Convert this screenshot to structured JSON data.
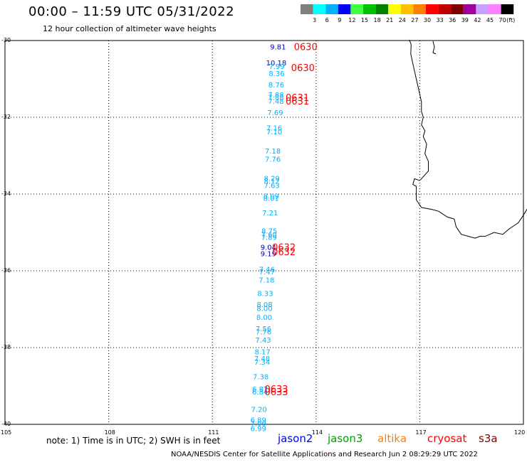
{
  "header": {
    "title": "00:00 – 11:59 UTC 05/31/2022",
    "subtitle": "12 hour collection of altimeter wave heights"
  },
  "legend": {
    "bins": [
      "3",
      "6",
      "9",
      "12",
      "15",
      "18",
      "21",
      "24",
      "27",
      "30",
      "33",
      "36",
      "39",
      "42",
      "45",
      "70"
    ],
    "unit": "(ft)",
    "colors": [
      "#7f7f7f",
      "#00ffff",
      "#00b0ff",
      "#0000ff",
      "#40ff40",
      "#00c000",
      "#008000",
      "#ffff00",
      "#ffc000",
      "#ff8000",
      "#ff0000",
      "#c00000",
      "#800000",
      "#a000a0",
      "#c8a0ff",
      "#ff80ff",
      "#000000"
    ]
  },
  "axes": {
    "lat_labels": [
      "-30",
      "-32",
      "-34",
      "-36",
      "-38",
      "-40"
    ],
    "lon_labels": [
      "105",
      "108",
      "111",
      "114",
      "117",
      "120"
    ]
  },
  "observations": [
    {
      "lat": -30.16,
      "lon": 112.9,
      "value": "9.81",
      "color": "#0000c0"
    },
    {
      "lat": -30.57,
      "lon": 112.85,
      "value": "10.18",
      "color": "#0000c0"
    },
    {
      "lat": -30.67,
      "lon": 112.86,
      "value": "7.99",
      "color": "#00b0ff"
    },
    {
      "lat": -30.85,
      "lon": 112.86,
      "value": "8.36",
      "color": "#00b0ff"
    },
    {
      "lat": -31.15,
      "lon": 112.85,
      "value": "8.76",
      "color": "#00b0ff"
    },
    {
      "lat": -31.41,
      "lon": 112.84,
      "value": "7.88",
      "color": "#00b0ff"
    },
    {
      "lat": -31.47,
      "lon": 112.84,
      "value": "7.88",
      "color": "#00b0ff"
    },
    {
      "lat": -31.57,
      "lon": 112.84,
      "value": "7.48",
      "color": "#00b0ff"
    },
    {
      "lat": -31.87,
      "lon": 112.82,
      "value": "7.69",
      "color": "#00b0ff"
    },
    {
      "lat": -32.27,
      "lon": 112.79,
      "value": "7.16",
      "color": "#00b0ff"
    },
    {
      "lat": -32.37,
      "lon": 112.79,
      "value": "7.10",
      "color": "#00b0ff"
    },
    {
      "lat": -32.87,
      "lon": 112.75,
      "value": "7.18",
      "color": "#00b0ff"
    },
    {
      "lat": -33.08,
      "lon": 112.75,
      "value": "7.76",
      "color": "#00b0ff"
    },
    {
      "lat": -33.58,
      "lon": 112.72,
      "value": "8.29",
      "color": "#00b0ff"
    },
    {
      "lat": -33.66,
      "lon": 112.72,
      "value": "8.12",
      "color": "#00b0ff"
    },
    {
      "lat": -33.77,
      "lon": 112.72,
      "value": "7.63",
      "color": "#00b0ff"
    },
    {
      "lat": -34.05,
      "lon": 112.7,
      "value": "8.09",
      "color": "#00b0ff"
    },
    {
      "lat": -34.1,
      "lon": 112.7,
      "value": "8.01",
      "color": "#00b0ff"
    },
    {
      "lat": -34.48,
      "lon": 112.67,
      "value": "7.21",
      "color": "#00b0ff"
    },
    {
      "lat": -34.95,
      "lon": 112.65,
      "value": "8.75",
      "color": "#00b0ff"
    },
    {
      "lat": -35.05,
      "lon": 112.64,
      "value": "7.60",
      "color": "#00b0ff"
    },
    {
      "lat": -35.12,
      "lon": 112.64,
      "value": "7.89",
      "color": "#00b0ff"
    },
    {
      "lat": -35.38,
      "lon": 112.62,
      "value": "9.04",
      "color": "#0000c0"
    },
    {
      "lat": -35.55,
      "lon": 112.62,
      "value": "9.19",
      "color": "#0000c0"
    },
    {
      "lat": -35.95,
      "lon": 112.58,
      "value": "7.46",
      "color": "#00b0ff"
    },
    {
      "lat": -36.02,
      "lon": 112.58,
      "value": "7.47",
      "color": "#00b0ff"
    },
    {
      "lat": -36.23,
      "lon": 112.57,
      "value": "7.18",
      "color": "#00b0ff"
    },
    {
      "lat": -36.58,
      "lon": 112.53,
      "value": "8.33",
      "color": "#00b0ff"
    },
    {
      "lat": -36.87,
      "lon": 112.51,
      "value": "8.08",
      "color": "#00b0ff"
    },
    {
      "lat": -36.97,
      "lon": 112.51,
      "value": "8.00",
      "color": "#00b0ff"
    },
    {
      "lat": -37.2,
      "lon": 112.5,
      "value": "8.00",
      "color": "#00b0ff"
    },
    {
      "lat": -37.5,
      "lon": 112.48,
      "value": "7.56",
      "color": "#00b0ff"
    },
    {
      "lat": -37.58,
      "lon": 112.48,
      "value": "7.76",
      "color": "#00b0ff"
    },
    {
      "lat": -37.8,
      "lon": 112.47,
      "value": "7.43",
      "color": "#00b0ff"
    },
    {
      "lat": -38.1,
      "lon": 112.45,
      "value": "8.17",
      "color": "#00b0ff"
    },
    {
      "lat": -38.28,
      "lon": 112.44,
      "value": "7.48",
      "color": "#00b0ff"
    },
    {
      "lat": -38.37,
      "lon": 112.44,
      "value": "7.34",
      "color": "#00b0ff"
    },
    {
      "lat": -38.75,
      "lon": 112.4,
      "value": "7.38",
      "color": "#00b0ff"
    },
    {
      "lat": -39.07,
      "lon": 112.38,
      "value": "6.87",
      "color": "#00b0ff"
    },
    {
      "lat": -39.15,
      "lon": 112.38,
      "value": "6.84",
      "color": "#00b0ff"
    },
    {
      "lat": -39.6,
      "lon": 112.35,
      "value": "7.20",
      "color": "#00b0ff"
    },
    {
      "lat": -39.88,
      "lon": 112.33,
      "value": "6.89",
      "color": "#00b0ff"
    },
    {
      "lat": -39.97,
      "lon": 112.33,
      "value": "7.09",
      "color": "#00b0ff"
    },
    {
      "lat": -40.1,
      "lon": 112.33,
      "value": "6.99",
      "color": "#00b0ff"
    }
  ],
  "time_labels": [
    {
      "lat": -30.16,
      "lon": 113.7,
      "text": "0630"
    },
    {
      "lat": -30.7,
      "lon": 113.62,
      "text": "0630"
    },
    {
      "lat": -31.48,
      "lon": 113.46,
      "text": "0631"
    },
    {
      "lat": -31.57,
      "lon": 113.46,
      "text": "0631"
    },
    {
      "lat": -35.38,
      "lon": 113.07,
      "text": "0632"
    },
    {
      "lat": -35.5,
      "lon": 113.07,
      "text": "0632"
    },
    {
      "lat": -39.07,
      "lon": 112.85,
      "text": "0633"
    },
    {
      "lat": -39.15,
      "lon": 112.85,
      "text": "0633"
    }
  ],
  "time_label_color": "#ff0000",
  "coastline": [
    [
      116.7,
      -29.98
    ],
    [
      116.75,
      -30.1
    ],
    [
      116.74,
      -30.35
    ],
    [
      116.8,
      -30.6
    ],
    [
      116.85,
      -30.8
    ],
    [
      116.9,
      -31.0
    ],
    [
      116.95,
      -31.2
    ],
    [
      117.0,
      -31.4
    ],
    [
      117.05,
      -31.6
    ],
    [
      117.05,
      -31.85
    ],
    [
      117.1,
      -32.0
    ],
    [
      117.05,
      -32.2
    ],
    [
      117.15,
      -32.35
    ],
    [
      117.1,
      -32.5
    ],
    [
      117.2,
      -32.7
    ],
    [
      117.15,
      -32.95
    ],
    [
      117.25,
      -33.15
    ],
    [
      117.25,
      -33.4
    ],
    [
      117.1,
      -33.55
    ],
    [
      117.0,
      -33.65
    ],
    [
      116.85,
      -33.6
    ],
    [
      116.8,
      -33.75
    ],
    [
      116.9,
      -33.8
    ],
    [
      116.9,
      -34.15
    ],
    [
      117.05,
      -34.35
    ],
    [
      117.35,
      -34.4
    ],
    [
      117.55,
      -34.45
    ],
    [
      117.8,
      -34.6
    ],
    [
      118.0,
      -34.65
    ],
    [
      118.05,
      -34.85
    ],
    [
      118.2,
      -35.05
    ],
    [
      118.4,
      -35.1
    ],
    [
      118.6,
      -35.15
    ],
    [
      118.75,
      -35.1
    ],
    [
      118.9,
      -35.1
    ],
    [
      119.15,
      -35.0
    ],
    [
      119.4,
      -35.05
    ],
    [
      119.6,
      -34.9
    ],
    [
      119.85,
      -34.75
    ],
    [
      120.0,
      -34.55
    ],
    [
      120.2,
      -34.25
    ],
    [
      120.45,
      -34.05
    ],
    [
      120.75,
      -34.0
    ],
    [
      121.0,
      -33.9
    ]
  ],
  "satellites": [
    {
      "name": "jason2",
      "color": "#0000ff"
    },
    {
      "name": "jason3",
      "color": "#00a000"
    },
    {
      "name": "altika",
      "color": "#ff8000"
    },
    {
      "name": "cryosat",
      "color": "#ff0000"
    },
    {
      "name": "s3a",
      "color": "#800000"
    }
  ],
  "note": "note: 1) Time is in UTC; 2) SWH is in feet",
  "footer": "NOAA/NESDIS Center for Satellite Applications and Research    Jun  2 08:29:29 UTC 2022"
}
